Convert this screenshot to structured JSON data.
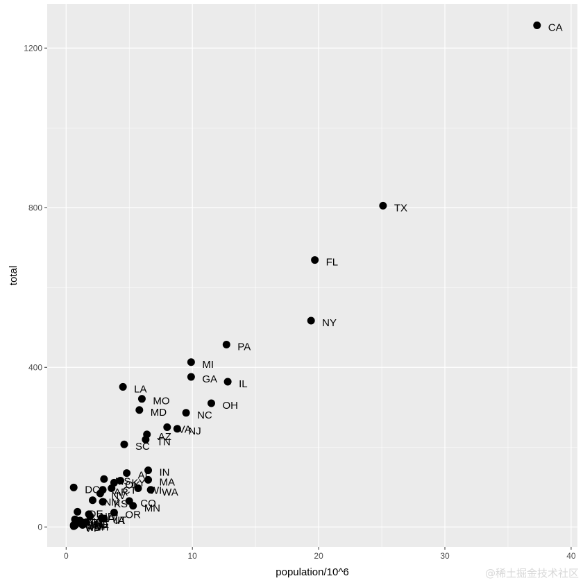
{
  "chart_data": {
    "type": "scatter",
    "title": "",
    "xlabel": "population/10^6",
    "ylabel": "total",
    "xlim": [
      -1.5,
      40.5
    ],
    "ylim": [
      -50,
      1310
    ],
    "x_ticks": [
      0,
      10,
      20,
      30,
      40
    ],
    "y_ticks": [
      0,
      400,
      800,
      1200
    ],
    "grid": true,
    "background_color": "#ebebeb",
    "grid_color": "#ffffff",
    "point_color": "#000000",
    "points": [
      {
        "label": "CA",
        "x": 37.3,
        "y": 1257
      },
      {
        "label": "TX",
        "x": 25.1,
        "y": 805
      },
      {
        "label": "FL",
        "x": 19.7,
        "y": 669
      },
      {
        "label": "NY",
        "x": 19.4,
        "y": 517
      },
      {
        "label": "PA",
        "x": 12.7,
        "y": 457
      },
      {
        "label": "MI",
        "x": 9.9,
        "y": 413
      },
      {
        "label": "GA",
        "x": 9.9,
        "y": 376
      },
      {
        "label": "IL",
        "x": 12.8,
        "y": 364
      },
      {
        "label": "LA",
        "x": 4.5,
        "y": 351
      },
      {
        "label": "MO",
        "x": 6.0,
        "y": 321
      },
      {
        "label": "OH",
        "x": 11.5,
        "y": 310
      },
      {
        "label": "MD",
        "x": 5.8,
        "y": 293
      },
      {
        "label": "NC",
        "x": 9.5,
        "y": 286
      },
      {
        "label": "VA",
        "x": 8.0,
        "y": 250
      },
      {
        "label": "NJ",
        "x": 8.8,
        "y": 246
      },
      {
        "label": "AZ",
        "x": 6.4,
        "y": 232
      },
      {
        "label": "TN",
        "x": 6.3,
        "y": 219
      },
      {
        "label": "SC",
        "x": 4.6,
        "y": 207
      },
      {
        "label": "IN",
        "x": 6.5,
        "y": 142
      },
      {
        "label": "AL",
        "x": 4.8,
        "y": 135
      },
      {
        "label": "MA",
        "x": 6.5,
        "y": 118
      },
      {
        "label": "KY",
        "x": 4.3,
        "y": 116
      },
      {
        "label": "OK",
        "x": 3.8,
        "y": 111
      },
      {
        "label": "WI",
        "x": 5.7,
        "y": 97
      },
      {
        "label": "WA",
        "x": 6.7,
        "y": 93
      },
      {
        "label": "DC",
        "x": 0.6,
        "y": 99
      },
      {
        "label": "AR",
        "x": 2.9,
        "y": 93
      },
      {
        "label": "MS",
        "x": 3.0,
        "y": 120
      },
      {
        "label": "NV",
        "x": 2.7,
        "y": 84
      },
      {
        "label": "CT",
        "x": 3.6,
        "y": 97
      },
      {
        "label": "KS",
        "x": 2.9,
        "y": 63
      },
      {
        "label": "CO",
        "x": 5.0,
        "y": 65
      },
      {
        "label": "MN",
        "x": 5.3,
        "y": 53
      },
      {
        "label": "NM",
        "x": 2.1,
        "y": 67
      },
      {
        "label": "OR",
        "x": 3.8,
        "y": 36
      },
      {
        "label": "DE",
        "x": 0.9,
        "y": 38
      },
      {
        "label": "NE",
        "x": 1.8,
        "y": 32
      },
      {
        "label": "WV",
        "x": 1.9,
        "y": 27
      },
      {
        "label": "UT",
        "x": 2.8,
        "y": 22
      },
      {
        "label": "IA",
        "x": 3.0,
        "y": 21
      },
      {
        "label": "RI",
        "x": 1.1,
        "y": 16
      },
      {
        "label": "AK",
        "x": 0.7,
        "y": 19
      },
      {
        "label": "ID",
        "x": 1.6,
        "y": 12
      },
      {
        "label": "MT",
        "x": 1.0,
        "y": 12
      },
      {
        "label": "HI",
        "x": 1.4,
        "y": 7
      },
      {
        "label": "ME",
        "x": 1.3,
        "y": 11
      },
      {
        "label": "SD",
        "x": 0.8,
        "y": 8
      },
      {
        "label": "WY",
        "x": 0.6,
        "y": 5
      },
      {
        "label": "NH",
        "x": 1.3,
        "y": 5
      },
      {
        "label": "ND",
        "x": 0.7,
        "y": 4
      },
      {
        "label": "VT",
        "x": 0.6,
        "y": 2
      }
    ]
  },
  "watermark": "@稀土掘金技术社区"
}
